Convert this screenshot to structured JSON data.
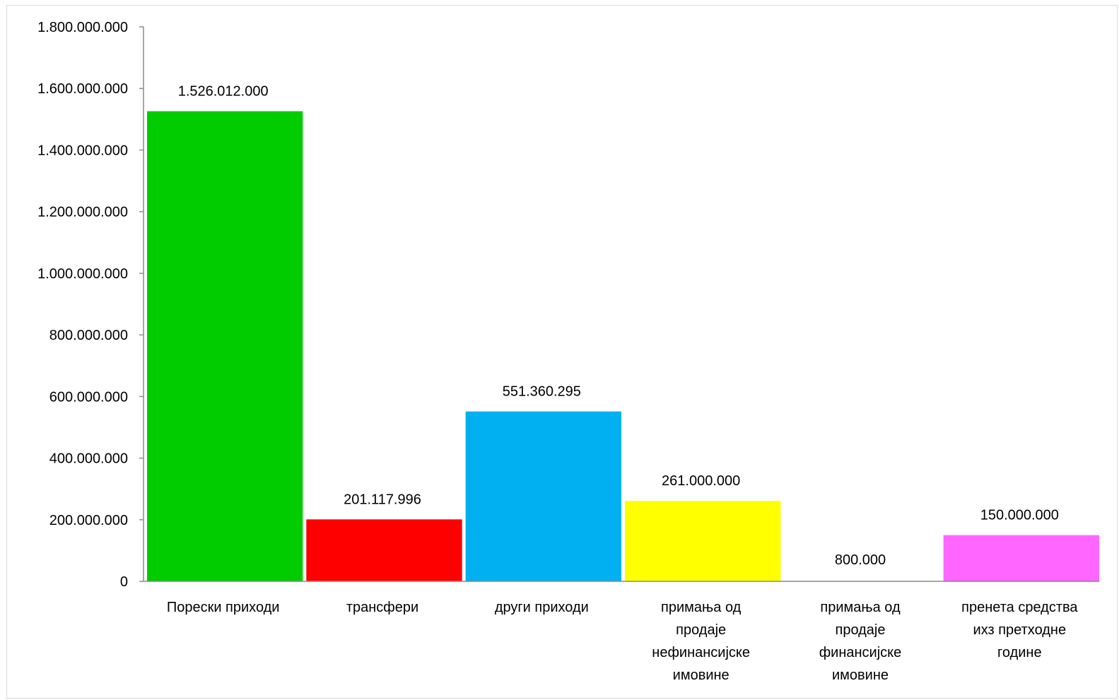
{
  "chart_data": {
    "type": "bar",
    "categories": [
      "Порески приходи",
      "трансфери",
      "други приходи",
      "примања од продаје нефинансијске имовине",
      "примања од продаје финансијске имовине",
      "пренета средства ихз претходне године"
    ],
    "category_lines": [
      [
        "Порески приходи"
      ],
      [
        "трансфери"
      ],
      [
        "други приходи"
      ],
      [
        "примања од",
        "продаје",
        "нефинансијске",
        "имовине"
      ],
      [
        "примања од",
        "продаје",
        "финансијске",
        "имовине"
      ],
      [
        "пренета средства",
        "ихз претходне",
        "године"
      ]
    ],
    "values": [
      1526012000,
      201117996,
      551360295,
      261000000,
      800000,
      150000000
    ],
    "data_labels": [
      "1.526.012.000",
      "201.117.996",
      "551.360.295",
      "261.000.000",
      "800.000",
      "150.000.000"
    ],
    "colors": [
      "#00cc00",
      "#ff0000",
      "#00b0f0",
      "#ffff00",
      "#ffc000",
      "#ff66ff"
    ],
    "ylim": [
      0,
      1800000000
    ],
    "yticks": [
      0,
      200000000,
      400000000,
      600000000,
      800000000,
      1000000000,
      1200000000,
      1400000000,
      1600000000,
      1800000000
    ],
    "ytick_labels": [
      "0",
      "200.000.000",
      "400.000.000",
      "600.000.000",
      "800.000.000",
      "1.000.000.000",
      "1.200.000.000",
      "1.400.000.000",
      "1.600.000.000",
      "1.800.000.000"
    ],
    "grid": false,
    "legend": "none",
    "title": "",
    "xlabel": "",
    "ylabel": ""
  }
}
